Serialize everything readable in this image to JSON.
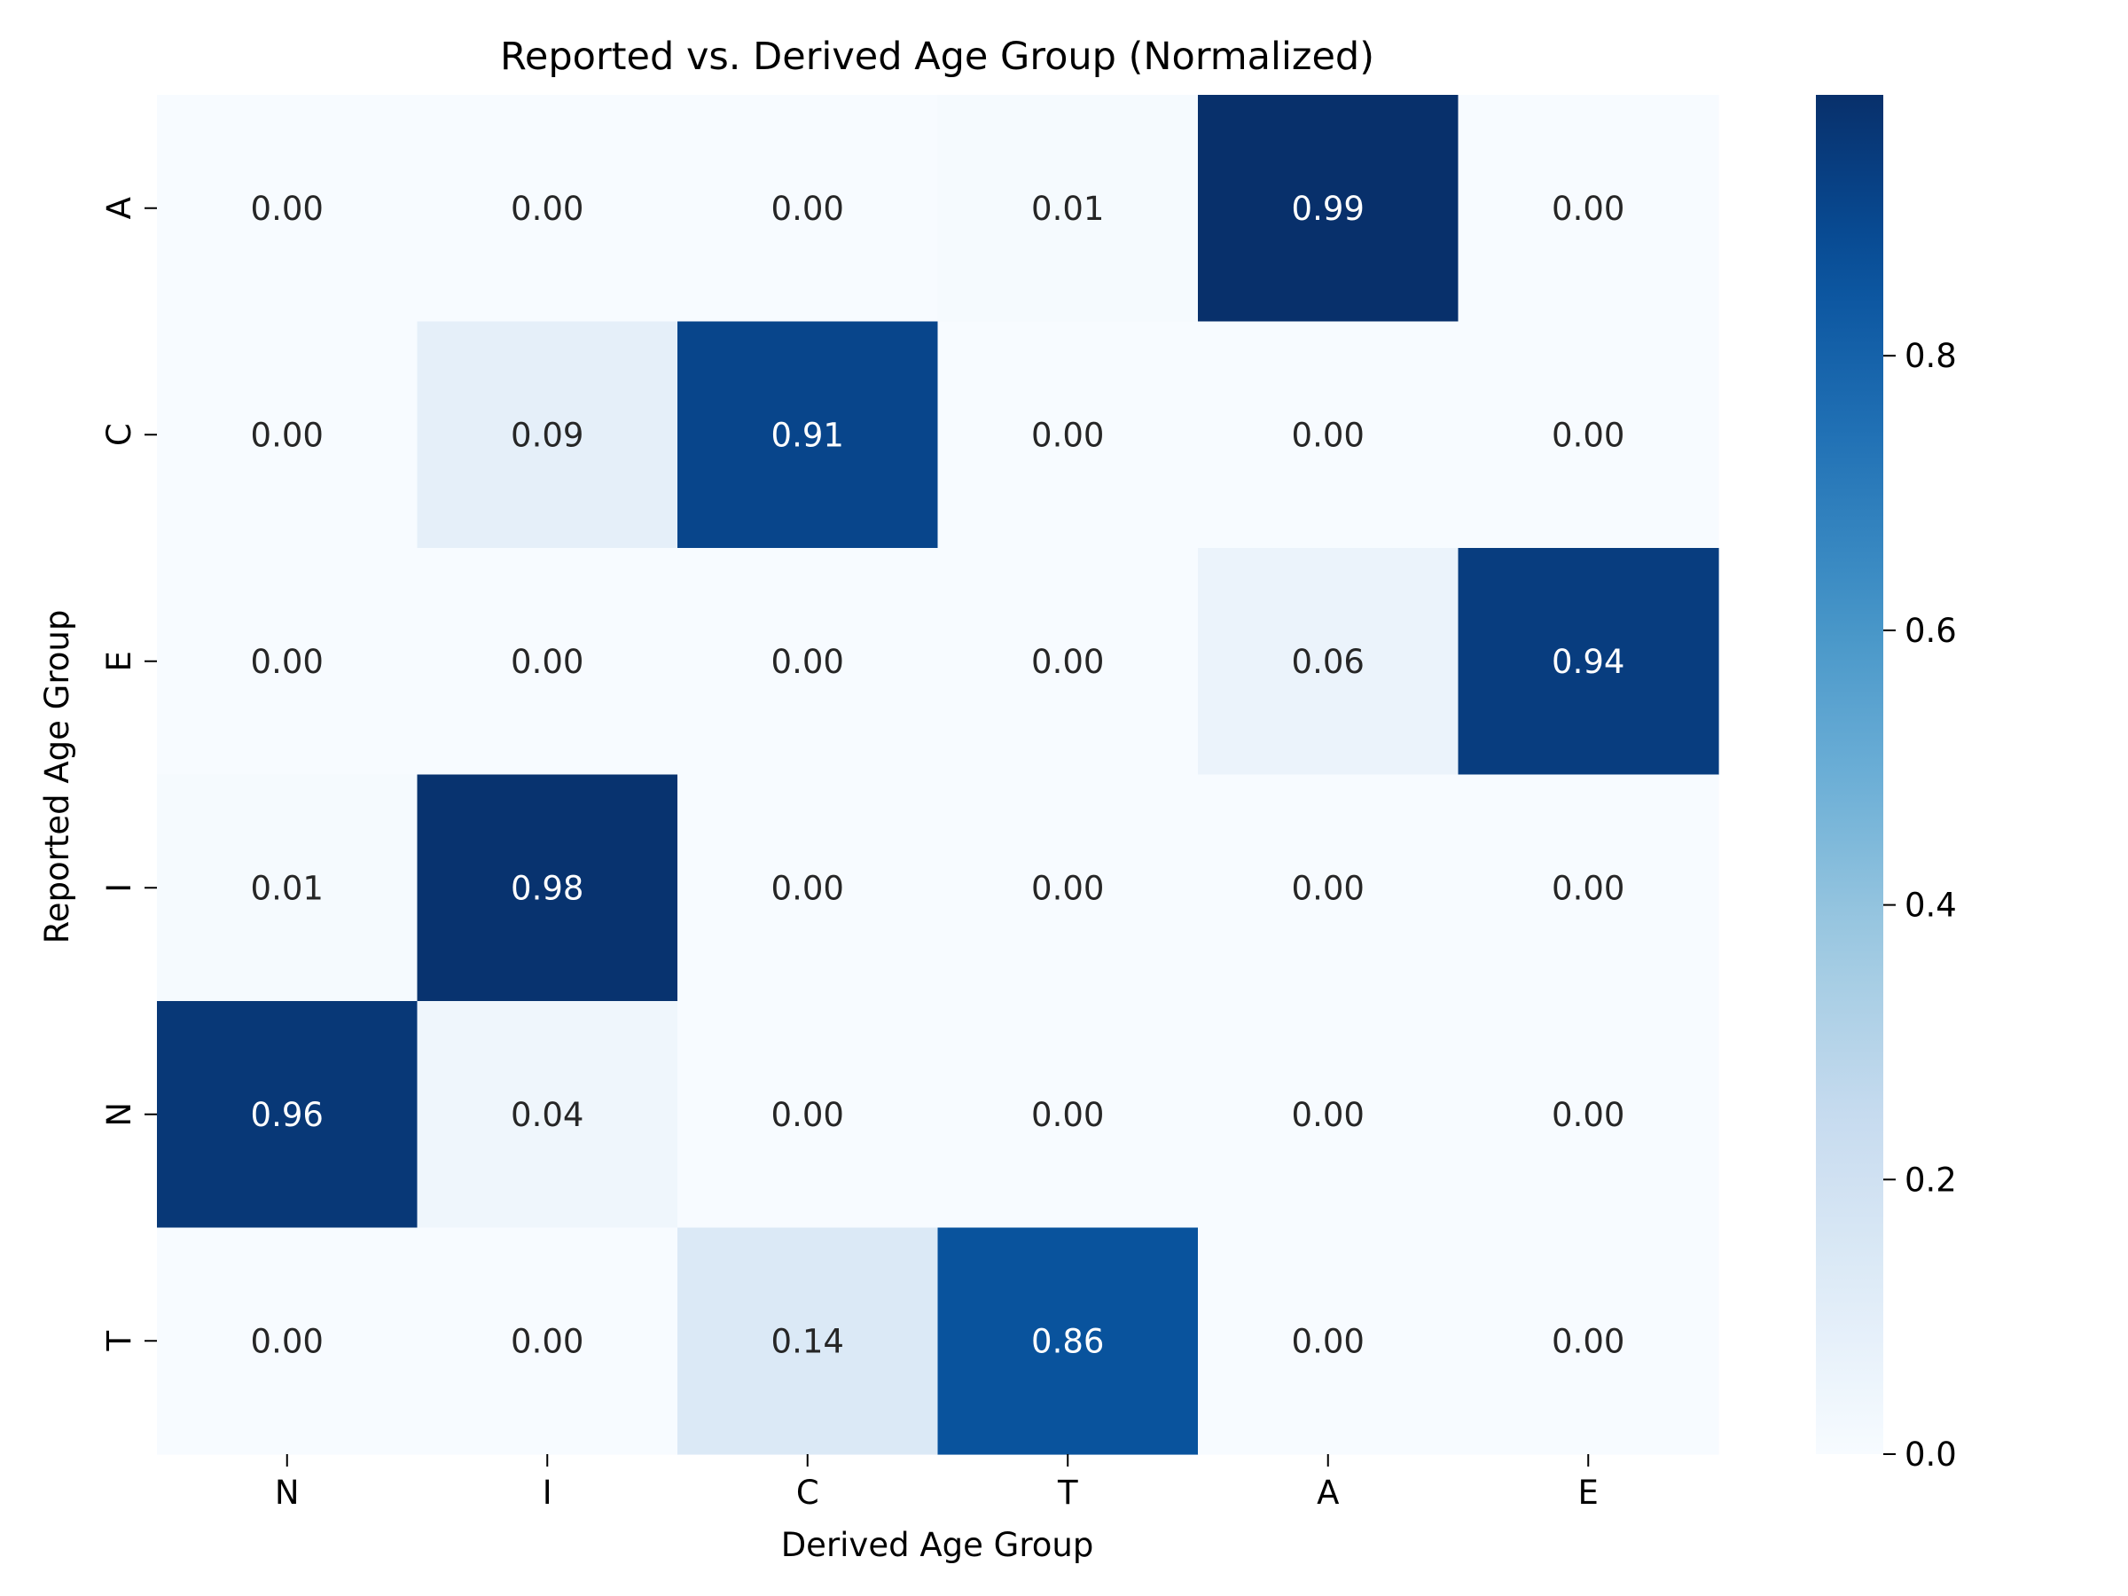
{
  "chart_data": {
    "type": "heatmap",
    "title": "Reported vs. Derived Age Group (Normalized)",
    "xlabel": "Derived Age Group",
    "ylabel": "Reported Age Group",
    "x_categories": [
      "N",
      "I",
      "C",
      "T",
      "A",
      "E"
    ],
    "y_categories": [
      "A",
      "C",
      "E",
      "I",
      "N",
      "T"
    ],
    "values": [
      [
        0.0,
        0.0,
        0.0,
        0.01,
        0.99,
        0.0
      ],
      [
        0.0,
        0.09,
        0.91,
        0.0,
        0.0,
        0.0
      ],
      [
        0.0,
        0.0,
        0.0,
        0.0,
        0.06,
        0.94
      ],
      [
        0.01,
        0.98,
        0.0,
        0.0,
        0.0,
        0.0
      ],
      [
        0.96,
        0.04,
        0.0,
        0.0,
        0.0,
        0.0
      ],
      [
        0.0,
        0.0,
        0.14,
        0.86,
        0.0,
        0.0
      ]
    ],
    "value_format": "0.00",
    "colormap": "Blues",
    "colorbar": {
      "range": [
        0.0,
        0.99
      ],
      "ticks": [
        0.0,
        0.2,
        0.4,
        0.6,
        0.8
      ],
      "tick_labels": [
        "0.0",
        "0.2",
        "0.4",
        "0.6",
        "0.8"
      ]
    },
    "grid": false,
    "legend": "colorbar-right"
  }
}
